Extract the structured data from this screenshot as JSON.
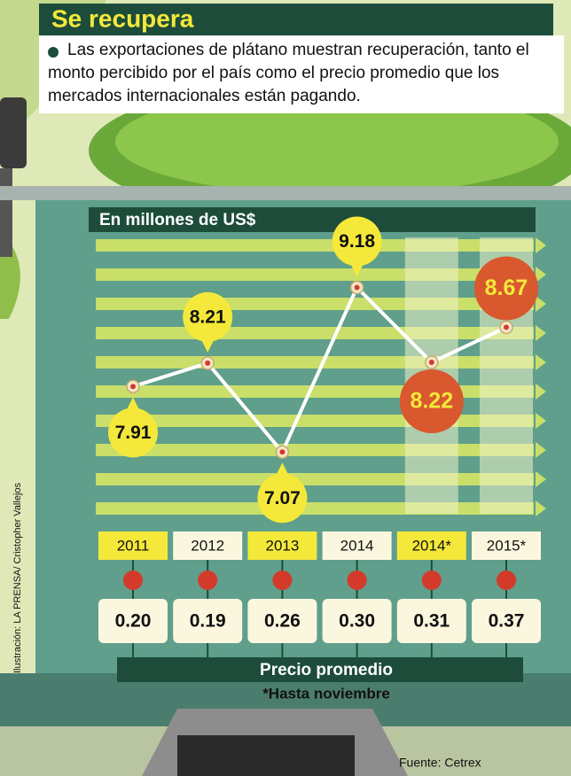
{
  "chart_data": {
    "type": "line",
    "title": "Se recupera",
    "subtitle": "Las exportaciones de plátano muestran recuperación, tanto el monto percibido por el país como el precio promedio que los mercados internacionales están pagando.",
    "y_label": "En millones de US$",
    "categories": [
      "2011",
      "2012",
      "2013",
      "2014",
      "2014*",
      "2015*"
    ],
    "values": [
      7.91,
      8.21,
      7.07,
      9.18,
      8.22,
      8.67
    ],
    "point_colors": [
      "#f4e93a",
      "#f4e93a",
      "#f4e93a",
      "#f4e93a",
      "#d9582e",
      "#d9582e"
    ],
    "line_color": "#ffffff",
    "ylim": [
      6.3,
      9.8
    ],
    "price": {
      "title": "Precio promedio",
      "values": [
        0.2,
        0.19,
        0.26,
        0.3,
        0.31,
        0.37
      ],
      "value_labels": [
        "0.20",
        "0.19",
        "0.26",
        "0.30",
        "0.31",
        "0.37"
      ]
    },
    "note": "*Hasta noviembre",
    "source": "Fuente: Cetrex",
    "credit": "Ilustración: LA PRENSA/ Cristopher Vallejos"
  }
}
